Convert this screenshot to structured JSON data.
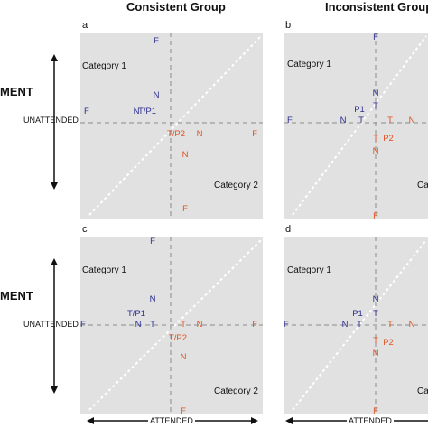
{
  "headers": {
    "left": "Consistent Group",
    "right": "Inconsistent Group"
  },
  "side_label": "MENT",
  "axis": {
    "unattended": "UNATTENDED",
    "attended": "ATTENDED"
  },
  "colors": {
    "blue": "#2d2f8f",
    "red": "#e0531f",
    "panel_bg": "#e1e1e1",
    "dash": "#8a8a8a"
  },
  "panels": [
    {
      "id": "a",
      "cat1": "Category 1",
      "cat2": "Category 2",
      "marks": [
        {
          "t": "F",
          "c": "blue"
        },
        {
          "t": "N",
          "c": "blue"
        },
        {
          "t": "F",
          "c": "blue"
        },
        {
          "t": "N",
          "c": "blue"
        },
        {
          "t": "T/P1",
          "c": "blue"
        },
        {
          "t": "T/P2",
          "c": "red"
        },
        {
          "t": "N",
          "c": "red"
        },
        {
          "t": "F",
          "c": "red"
        },
        {
          "t": "N",
          "c": "red"
        },
        {
          "t": "F",
          "c": "red"
        }
      ]
    },
    {
      "id": "b",
      "cat1": "Category 1",
      "cat2": "Ca",
      "marks": [
        {
          "t": "F",
          "c": "blue"
        },
        {
          "t": "N",
          "c": "blue"
        },
        {
          "t": "P1",
          "c": "blue"
        },
        {
          "t": "T",
          "c": "blue"
        },
        {
          "t": "F",
          "c": "blue"
        },
        {
          "t": "N",
          "c": "blue"
        },
        {
          "t": "T",
          "c": "blue"
        },
        {
          "t": "T",
          "c": "red"
        },
        {
          "t": "T",
          "c": "red"
        },
        {
          "t": "N",
          "c": "red"
        },
        {
          "t": "P2",
          "c": "red"
        },
        {
          "t": "N",
          "c": "red"
        },
        {
          "t": "F",
          "c": "red"
        }
      ]
    },
    {
      "id": "c",
      "cat1": "Category 1",
      "cat2": "Category 2",
      "marks": [
        {
          "t": "F",
          "c": "blue"
        },
        {
          "t": "N",
          "c": "blue"
        },
        {
          "t": "T/P1",
          "c": "blue"
        },
        {
          "t": "F",
          "c": "blue"
        },
        {
          "t": "N",
          "c": "blue"
        },
        {
          "t": "T",
          "c": "blue"
        },
        {
          "t": "T",
          "c": "red"
        },
        {
          "t": "N",
          "c": "red"
        },
        {
          "t": "F",
          "c": "red"
        },
        {
          "t": "T/P2",
          "c": "red"
        },
        {
          "t": "N",
          "c": "red"
        },
        {
          "t": "F",
          "c": "red"
        }
      ]
    },
    {
      "id": "d",
      "cat1": "Category 1",
      "cat2": "Ca",
      "marks": [
        {
          "t": "N",
          "c": "blue"
        },
        {
          "t": "P1",
          "c": "blue"
        },
        {
          "t": "T",
          "c": "blue"
        },
        {
          "t": "F",
          "c": "blue"
        },
        {
          "t": "N",
          "c": "blue"
        },
        {
          "t": "T",
          "c": "blue"
        },
        {
          "t": "T",
          "c": "red"
        },
        {
          "t": "T",
          "c": "red"
        },
        {
          "t": "N",
          "c": "red"
        },
        {
          "t": "P2",
          "c": "red"
        },
        {
          "t": "N",
          "c": "red"
        },
        {
          "t": "F",
          "c": "red"
        }
      ]
    }
  ]
}
